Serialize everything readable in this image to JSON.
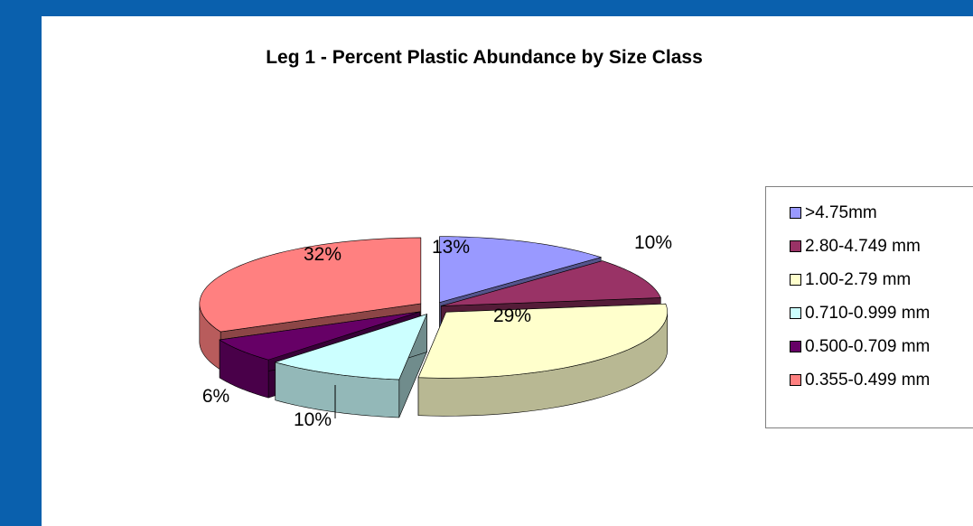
{
  "chart_data": {
    "type": "pie",
    "title": "Leg 1 -  Percent  Plastic Abundance by Size Class",
    "categories": [
      ">4.75mm",
      "2.80-4.749 mm",
      "1.00-2.79 mm",
      "0.710-0.999 mm",
      "0.500-0.709 mm",
      "0.355-0.499 mm"
    ],
    "values": [
      13,
      10,
      29,
      10,
      6,
      32
    ],
    "data_labels": [
      "13%",
      "10%",
      "29%",
      "10%",
      "6%",
      "32%"
    ],
    "colors": [
      "#9999ff",
      "#993366",
      "#ffffcc",
      "#ccffff",
      "#660066",
      "#ff8080"
    ],
    "legend_position": "right",
    "style": "exploded-3d"
  }
}
